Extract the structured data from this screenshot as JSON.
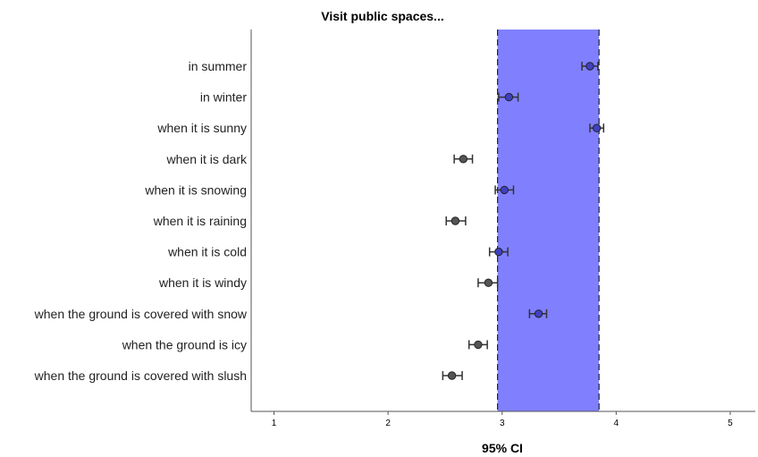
{
  "chart_data": {
    "type": "errorbar",
    "title": "Visit public spaces...",
    "xlabel": "95% CI",
    "xlim": [
      0.8,
      5.22
    ],
    "xticks": [
      1,
      2,
      3,
      4,
      5
    ],
    "band": {
      "from": 2.96,
      "to": 3.85,
      "color": "#8080ff"
    },
    "categories": [
      {
        "label": "in summer",
        "mean": 3.77,
        "low": 3.7,
        "high": 3.84
      },
      {
        "label": "in winter",
        "mean": 3.06,
        "low": 2.97,
        "high": 3.14
      },
      {
        "label": "when it is sunny",
        "mean": 3.83,
        "low": 3.77,
        "high": 3.89
      },
      {
        "label": "when it is dark",
        "mean": 2.66,
        "low": 2.58,
        "high": 2.74
      },
      {
        "label": "when it is snowing",
        "mean": 3.02,
        "low": 2.94,
        "high": 3.1
      },
      {
        "label": "when it is raining",
        "mean": 2.59,
        "low": 2.51,
        "high": 2.68
      },
      {
        "label": "when it is cold",
        "mean": 2.97,
        "low": 2.89,
        "high": 3.05
      },
      {
        "label": "when it is windy",
        "mean": 2.88,
        "low": 2.79,
        "high": 2.96
      },
      {
        "label": "when the ground is covered with snow",
        "mean": 3.32,
        "low": 3.24,
        "high": 3.39
      },
      {
        "label": "when the ground is icy",
        "mean": 2.79,
        "low": 2.71,
        "high": 2.87
      },
      {
        "label": "when the ground is covered with slush",
        "mean": 2.56,
        "low": 2.48,
        "high": 2.65
      }
    ],
    "inside_color": "#4040c0",
    "outside_color": "#555555",
    "grid": false
  }
}
